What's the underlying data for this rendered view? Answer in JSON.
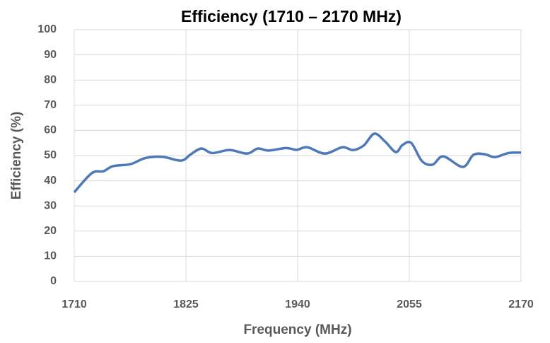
{
  "chart_data": {
    "type": "line",
    "title": "Efficiency (1710 – 2170 MHz)",
    "x_label": "Frequency (MHz)",
    "y_label": "Efficiency (%)",
    "series": [
      {
        "name": "Efficiency",
        "color": "#4e79b8",
        "x": [
          1710,
          1728,
          1740,
          1750,
          1768,
          1783,
          1801,
          1820,
          1830,
          1841,
          1852,
          1870,
          1888,
          1899,
          1910,
          1928,
          1939,
          1950,
          1968,
          1986,
          1997,
          2008,
          2019,
          2030,
          2041,
          2048,
          2057,
          2068,
          2079,
          2090,
          2110,
          2121,
          2132,
          2143,
          2157,
          2170
        ],
        "values": [
          35.4,
          43,
          43.8,
          45.8,
          46.6,
          49,
          49.5,
          48,
          50.5,
          52.8,
          51,
          52.2,
          50.8,
          52.8,
          52,
          53,
          52.3,
          53.3,
          50.8,
          53.3,
          52.2,
          54,
          58.7,
          55.6,
          51.4,
          54.2,
          55,
          47.8,
          46.4,
          49.7,
          45.5,
          50.3,
          50.6,
          49.4,
          51,
          51.2
        ]
      }
    ],
    "xlim": [
      1710,
      2170
    ],
    "xticks": [
      1710,
      1825,
      1940,
      2055,
      2170
    ],
    "ylim": [
      0,
      100
    ],
    "yticks": [
      0,
      10,
      20,
      30,
      40,
      50,
      60,
      70,
      80,
      90,
      100
    ],
    "grid": true
  }
}
